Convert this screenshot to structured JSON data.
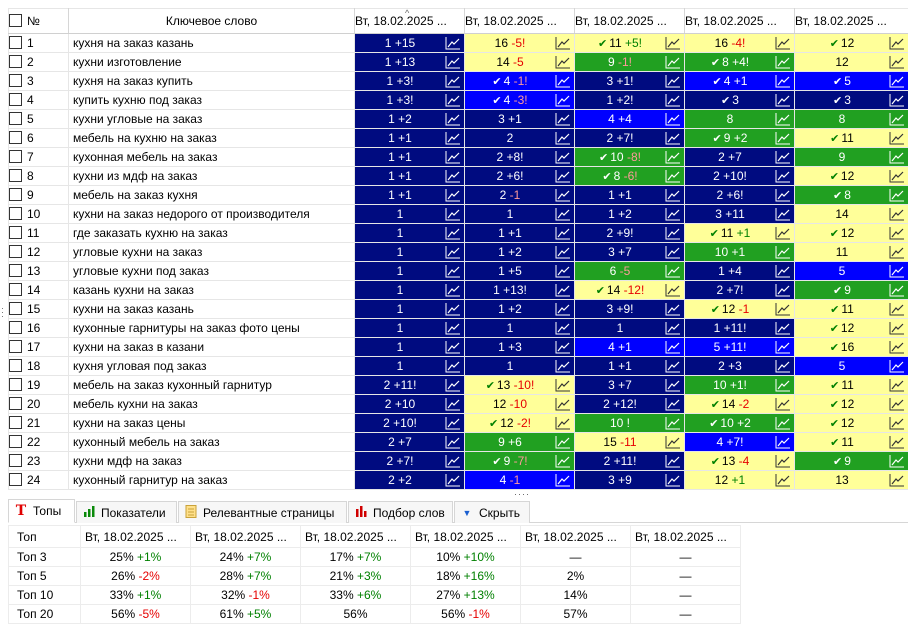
{
  "header": {
    "num": "№",
    "keyword": "Ключевое слово",
    "dates": [
      "Вт, 18.02.2025 ...",
      "Вт, 18.02.2025 ...",
      "Вт, 18.02.2025 ...",
      "Вт, 18.02.2025 ...",
      "Вт, 18.02.2025 ..."
    ]
  },
  "colors": {
    "navy": "#000b80",
    "blue": "#0000ff",
    "green": "#21a021",
    "yellow": "#ffff99"
  },
  "rows": [
    {
      "n": "1",
      "kw": "кухня на заказ казань",
      "cells": [
        {
          "c": "navy",
          "v": "1",
          "d": "+15",
          "t": "up"
        },
        {
          "c": "yellow",
          "v": "16",
          "d": "-5!",
          "t": "dn"
        },
        {
          "c": "yellow",
          "k": true,
          "v": "11",
          "d": "+5!",
          "t": "up"
        },
        {
          "c": "yellow",
          "v": "16",
          "d": "-4!",
          "t": "dn"
        },
        {
          "c": "yellow",
          "k": true,
          "v": "12",
          "d": "",
          "t": ""
        }
      ]
    },
    {
      "n": "2",
      "kw": "кухни изготовление",
      "cells": [
        {
          "c": "navy",
          "v": "1",
          "d": "+13",
          "t": "up"
        },
        {
          "c": "yellow",
          "v": "14",
          "d": "-5",
          "t": "dn"
        },
        {
          "c": "green",
          "v": "9",
          "d": "-1!",
          "t": "dn"
        },
        {
          "c": "green",
          "k": true,
          "v": "8",
          "d": "+4!",
          "t": "up"
        },
        {
          "c": "yellow",
          "v": "12",
          "d": "",
          "t": ""
        }
      ]
    },
    {
      "n": "3",
      "kw": "кухня на заказ купить",
      "cells": [
        {
          "c": "navy",
          "v": "1",
          "d": "+3!",
          "t": "up"
        },
        {
          "c": "blue",
          "k": true,
          "v": "4",
          "d": "-1!",
          "t": "dn"
        },
        {
          "c": "navy",
          "v": "3",
          "d": "+1!",
          "t": "up"
        },
        {
          "c": "blue",
          "k": true,
          "v": "4",
          "d": "+1",
          "t": "up"
        },
        {
          "c": "blue",
          "k": true,
          "v": "5",
          "d": "",
          "t": ""
        }
      ]
    },
    {
      "n": "4",
      "kw": "купить кухню под заказ",
      "cells": [
        {
          "c": "navy",
          "v": "1",
          "d": "+3!",
          "t": "up"
        },
        {
          "c": "blue",
          "k": true,
          "v": "4",
          "d": "-3!",
          "t": "dn"
        },
        {
          "c": "navy",
          "v": "1",
          "d": "+2!",
          "t": "up"
        },
        {
          "c": "navy",
          "k": true,
          "v": "3",
          "d": "",
          "t": ""
        },
        {
          "c": "navy",
          "k": true,
          "v": "3",
          "d": "",
          "t": ""
        }
      ]
    },
    {
      "n": "5",
      "kw": "кухни угловые на заказ",
      "cells": [
        {
          "c": "navy",
          "v": "1",
          "d": "+2",
          "t": "up"
        },
        {
          "c": "navy",
          "v": "3",
          "d": "+1",
          "t": "up"
        },
        {
          "c": "blue",
          "v": "4",
          "d": "+4",
          "t": "up"
        },
        {
          "c": "green",
          "v": "8",
          "d": "",
          "t": ""
        },
        {
          "c": "green",
          "v": "8",
          "d": "",
          "t": ""
        }
      ]
    },
    {
      "n": "6",
      "kw": "мебель на кухню на заказ",
      "cells": [
        {
          "c": "navy",
          "v": "1",
          "d": "+1",
          "t": "up"
        },
        {
          "c": "navy",
          "v": "2",
          "d": "",
          "t": ""
        },
        {
          "c": "navy",
          "v": "2",
          "d": "+7!",
          "t": "up"
        },
        {
          "c": "green",
          "k": true,
          "v": "9",
          "d": "+2",
          "t": "up"
        },
        {
          "c": "yellow",
          "k": true,
          "v": "11",
          "d": "",
          "t": ""
        }
      ]
    },
    {
      "n": "7",
      "kw": "кухонная мебель на заказ",
      "cells": [
        {
          "c": "navy",
          "v": "1",
          "d": "+1",
          "t": "up"
        },
        {
          "c": "navy",
          "v": "2",
          "d": "+8!",
          "t": "up"
        },
        {
          "c": "green",
          "k": true,
          "v": "10",
          "d": "-8!",
          "t": "dn"
        },
        {
          "c": "navy",
          "v": "2",
          "d": "+7",
          "t": "up"
        },
        {
          "c": "green",
          "v": "9",
          "d": "",
          "t": ""
        }
      ]
    },
    {
      "n": "8",
      "kw": "кухни из мдф на заказ",
      "cells": [
        {
          "c": "navy",
          "v": "1",
          "d": "+1",
          "t": "up"
        },
        {
          "c": "navy",
          "v": "2",
          "d": "+6!",
          "t": "up"
        },
        {
          "c": "green",
          "k": true,
          "v": "8",
          "d": "-6!",
          "t": "dn"
        },
        {
          "c": "navy",
          "v": "2",
          "d": "+10!",
          "t": "up"
        },
        {
          "c": "yellow",
          "k": true,
          "v": "12",
          "d": "",
          "t": ""
        }
      ]
    },
    {
      "n": "9",
      "kw": "мебель на заказ кухня",
      "cells": [
        {
          "c": "navy",
          "v": "1",
          "d": "+1",
          "t": "up"
        },
        {
          "c": "navy",
          "v": "2",
          "d": "-1",
          "t": "dn"
        },
        {
          "c": "navy",
          "v": "1",
          "d": "+1",
          "t": "up"
        },
        {
          "c": "navy",
          "v": "2",
          "d": "+6!",
          "t": "up"
        },
        {
          "c": "green",
          "k": true,
          "v": "8",
          "d": "",
          "t": ""
        }
      ]
    },
    {
      "n": "10",
      "kw": "кухни на заказ недорого от производителя",
      "cells": [
        {
          "c": "navy",
          "v": "1",
          "d": "",
          "t": ""
        },
        {
          "c": "navy",
          "v": "1",
          "d": "",
          "t": ""
        },
        {
          "c": "navy",
          "v": "1",
          "d": "+2",
          "t": "up"
        },
        {
          "c": "navy",
          "v": "3",
          "d": "+11",
          "t": "up"
        },
        {
          "c": "yellow",
          "v": "14",
          "d": "",
          "t": ""
        }
      ]
    },
    {
      "n": "11",
      "kw": "где заказать кухню на заказ",
      "cells": [
        {
          "c": "navy",
          "v": "1",
          "d": "",
          "t": ""
        },
        {
          "c": "navy",
          "v": "1",
          "d": "+1",
          "t": "up"
        },
        {
          "c": "navy",
          "v": "2",
          "d": "+9!",
          "t": "up"
        },
        {
          "c": "yellow",
          "k": true,
          "v": "11",
          "d": "+1",
          "t": "up"
        },
        {
          "c": "yellow",
          "k": true,
          "v": "12",
          "d": "",
          "t": ""
        }
      ]
    },
    {
      "n": "12",
      "kw": "угловые кухни на заказ",
      "cells": [
        {
          "c": "navy",
          "v": "1",
          "d": "",
          "t": ""
        },
        {
          "c": "navy",
          "v": "1",
          "d": "+2",
          "t": "up"
        },
        {
          "c": "navy",
          "v": "3",
          "d": "+7",
          "t": "up"
        },
        {
          "c": "green",
          "v": "10",
          "d": "+1",
          "t": "up"
        },
        {
          "c": "yellow",
          "v": "11",
          "d": "",
          "t": ""
        }
      ]
    },
    {
      "n": "13",
      "kw": "угловые кухни под заказ",
      "cells": [
        {
          "c": "navy",
          "v": "1",
          "d": "",
          "t": ""
        },
        {
          "c": "navy",
          "v": "1",
          "d": "+5",
          "t": "up"
        },
        {
          "c": "green",
          "v": "6",
          "d": "-5",
          "t": "dn"
        },
        {
          "c": "navy",
          "v": "1",
          "d": "+4",
          "t": "up"
        },
        {
          "c": "blue",
          "v": "5",
          "d": "",
          "t": ""
        }
      ]
    },
    {
      "n": "14",
      "kw": "казань кухни на заказ",
      "cells": [
        {
          "c": "navy",
          "v": "1",
          "d": "",
          "t": ""
        },
        {
          "c": "navy",
          "v": "1",
          "d": "+13!",
          "t": "up"
        },
        {
          "c": "yellow",
          "k": true,
          "v": "14",
          "d": "-12!",
          "t": "dn"
        },
        {
          "c": "navy",
          "v": "2",
          "d": "+7!",
          "t": "up"
        },
        {
          "c": "green",
          "k": true,
          "v": "9",
          "d": "",
          "t": ""
        }
      ]
    },
    {
      "n": "15",
      "kw": "кухни на заказ казань",
      "cells": [
        {
          "c": "navy",
          "v": "1",
          "d": "",
          "t": ""
        },
        {
          "c": "navy",
          "v": "1",
          "d": "+2",
          "t": "up"
        },
        {
          "c": "navy",
          "v": "3",
          "d": "+9!",
          "t": "up"
        },
        {
          "c": "yellow",
          "k": true,
          "v": "12",
          "d": "-1",
          "t": "dn"
        },
        {
          "c": "yellow",
          "k": true,
          "v": "11",
          "d": "",
          "t": ""
        }
      ]
    },
    {
      "n": "16",
      "kw": "кухонные гарнитуры на заказ фото цены",
      "cells": [
        {
          "c": "navy",
          "v": "1",
          "d": "",
          "t": ""
        },
        {
          "c": "navy",
          "v": "1",
          "d": "",
          "t": ""
        },
        {
          "c": "navy",
          "v": "1",
          "d": "",
          "t": ""
        },
        {
          "c": "navy",
          "v": "1",
          "d": "+11!",
          "t": "up"
        },
        {
          "c": "yellow",
          "k": true,
          "v": "12",
          "d": "",
          "t": ""
        }
      ]
    },
    {
      "n": "17",
      "kw": "кухни на заказ в казани",
      "cells": [
        {
          "c": "navy",
          "v": "1",
          "d": "",
          "t": ""
        },
        {
          "c": "navy",
          "v": "1",
          "d": "+3",
          "t": "up"
        },
        {
          "c": "blue",
          "v": "4",
          "d": "+1",
          "t": "up"
        },
        {
          "c": "blue",
          "v": "5",
          "d": "+11!",
          "t": "up"
        },
        {
          "c": "yellow",
          "k": true,
          "v": "16",
          "d": "",
          "t": ""
        }
      ]
    },
    {
      "n": "18",
      "kw": "кухня угловая под заказ",
      "cells": [
        {
          "c": "navy",
          "v": "1",
          "d": "",
          "t": ""
        },
        {
          "c": "navy",
          "v": "1",
          "d": "",
          "t": ""
        },
        {
          "c": "navy",
          "v": "1",
          "d": "+1",
          "t": "up"
        },
        {
          "c": "navy",
          "v": "2",
          "d": "+3",
          "t": "up"
        },
        {
          "c": "blue",
          "v": "5",
          "d": "",
          "t": ""
        }
      ]
    },
    {
      "n": "19",
      "kw": "мебель на заказ кухонный гарнитур",
      "cells": [
        {
          "c": "navy",
          "v": "2",
          "d": "+11!",
          "t": "up"
        },
        {
          "c": "yellow",
          "k": true,
          "v": "13",
          "d": "-10!",
          "t": "dn"
        },
        {
          "c": "navy",
          "v": "3",
          "d": "+7",
          "t": "up"
        },
        {
          "c": "green",
          "v": "10",
          "d": "+1!",
          "t": "up"
        },
        {
          "c": "yellow",
          "k": true,
          "v": "11",
          "d": "",
          "t": ""
        }
      ]
    },
    {
      "n": "20",
      "kw": "мебель кухни на заказ",
      "cells": [
        {
          "c": "navy",
          "v": "2",
          "d": "+10",
          "t": "up"
        },
        {
          "c": "yellow",
          "v": "12",
          "d": "-10",
          "t": "dn"
        },
        {
          "c": "navy",
          "v": "2",
          "d": "+12!",
          "t": "up"
        },
        {
          "c": "yellow",
          "k": true,
          "v": "14",
          "d": "-2",
          "t": "dn"
        },
        {
          "c": "yellow",
          "k": true,
          "v": "12",
          "d": "",
          "t": ""
        }
      ]
    },
    {
      "n": "21",
      "kw": "кухни на заказ цены",
      "cells": [
        {
          "c": "navy",
          "v": "2",
          "d": "+10!",
          "t": "up"
        },
        {
          "c": "yellow",
          "k": true,
          "v": "12",
          "d": "-2!",
          "t": "dn"
        },
        {
          "c": "green",
          "v": "10",
          "d": "!",
          "t": ""
        },
        {
          "c": "green",
          "k": true,
          "v": "10",
          "d": "+2",
          "t": "up"
        },
        {
          "c": "yellow",
          "k": true,
          "v": "12",
          "d": "",
          "t": ""
        }
      ]
    },
    {
      "n": "22",
      "kw": "кухонный мебель на заказ",
      "cells": [
        {
          "c": "navy",
          "v": "2",
          "d": "+7",
          "t": "up"
        },
        {
          "c": "green",
          "v": "9",
          "d": "+6",
          "t": "up"
        },
        {
          "c": "yellow",
          "v": "15",
          "d": "-11",
          "t": "dn"
        },
        {
          "c": "blue",
          "v": "4",
          "d": "+7!",
          "t": "up"
        },
        {
          "c": "yellow",
          "k": true,
          "v": "11",
          "d": "",
          "t": ""
        }
      ]
    },
    {
      "n": "23",
      "kw": "кухни мдф на заказ",
      "cells": [
        {
          "c": "navy",
          "v": "2",
          "d": "+7!",
          "t": "up"
        },
        {
          "c": "green",
          "k": true,
          "v": "9",
          "d": "-7!",
          "t": "dn"
        },
        {
          "c": "navy",
          "v": "2",
          "d": "+11!",
          "t": "up"
        },
        {
          "c": "yellow",
          "k": true,
          "v": "13",
          "d": "-4",
          "t": "dn"
        },
        {
          "c": "green",
          "k": true,
          "v": "9",
          "d": "",
          "t": ""
        }
      ]
    },
    {
      "n": "24",
      "kw": "кухонный гарнитур на заказ",
      "cells": [
        {
          "c": "navy",
          "v": "2",
          "d": "+2",
          "t": "up"
        },
        {
          "c": "blue",
          "v": "4",
          "d": "-1",
          "t": "dn"
        },
        {
          "c": "navy",
          "v": "3",
          "d": "+9",
          "t": "up"
        },
        {
          "c": "yellow",
          "v": "12",
          "d": "+1",
          "t": "up"
        },
        {
          "c": "yellow",
          "v": "13",
          "d": "",
          "t": ""
        }
      ]
    }
  ],
  "tabs": [
    {
      "label": "Топы",
      "icon": "T",
      "iconName": "tops-icon",
      "active": true
    },
    {
      "label": "Показатели",
      "icon": "bars",
      "iconName": "indicators-icon",
      "active": false
    },
    {
      "label": "Релевантные страницы",
      "icon": "doc",
      "iconName": "document-icon",
      "active": false
    },
    {
      "label": "Подбор слов",
      "icon": "bars-red",
      "iconName": "word-selection-icon",
      "active": false
    },
    {
      "label": "Скрыть",
      "icon": "arrow",
      "iconName": "hide-arrow-icon",
      "active": false
    }
  ],
  "stats": {
    "header": [
      "Топ",
      "Вт, 18.02.2025 ...",
      "Вт, 18.02.2025 ...",
      "Вт, 18.02.2025 ...",
      "Вт, 18.02.2025 ...",
      "Вт, 18.02.2025 ...",
      "Вт, 18.02.2025 ..."
    ],
    "rows": [
      {
        "label": "Топ 3",
        "cells": [
          {
            "v": "25%",
            "d": "+1%"
          },
          {
            "v": "24%",
            "d": "+7%"
          },
          {
            "v": "17%",
            "d": "+7%"
          },
          {
            "v": "10%",
            "d": "+10%"
          },
          {
            "v": "—",
            "d": ""
          },
          {
            "v": "—",
            "d": ""
          }
        ]
      },
      {
        "label": "Топ 5",
        "cells": [
          {
            "v": "26%",
            "d": "-2%"
          },
          {
            "v": "28%",
            "d": "+7%"
          },
          {
            "v": "21%",
            "d": "+3%"
          },
          {
            "v": "18%",
            "d": "+16%"
          },
          {
            "v": "2%",
            "d": ""
          },
          {
            "v": "—",
            "d": ""
          }
        ]
      },
      {
        "label": "Топ 10",
        "cells": [
          {
            "v": "33%",
            "d": "+1%"
          },
          {
            "v": "32%",
            "d": "-1%"
          },
          {
            "v": "33%",
            "d": "+6%"
          },
          {
            "v": "27%",
            "d": "+13%"
          },
          {
            "v": "14%",
            "d": ""
          },
          {
            "v": "—",
            "d": ""
          }
        ]
      },
      {
        "label": "Топ 20",
        "cells": [
          {
            "v": "56%",
            "d": "-5%"
          },
          {
            "v": "61%",
            "d": "+5%"
          },
          {
            "v": "56%",
            "d": ""
          },
          {
            "v": "56%",
            "d": "-1%"
          },
          {
            "v": "57%",
            "d": ""
          },
          {
            "v": "—",
            "d": ""
          }
        ]
      }
    ]
  }
}
